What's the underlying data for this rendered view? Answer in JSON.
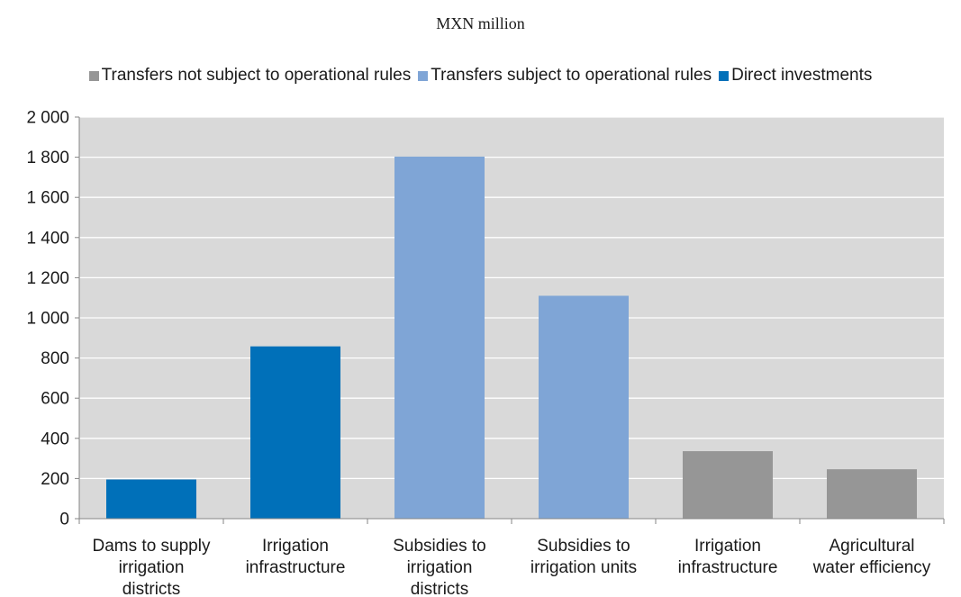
{
  "chart_data": {
    "type": "bar",
    "title": "MXN million",
    "xlabel": "",
    "ylabel": "",
    "ylim": [
      0,
      2000
    ],
    "yticks": [
      0,
      200,
      400,
      600,
      800,
      1000,
      1200,
      1400,
      1600,
      1800,
      2000
    ],
    "ytick_labels": [
      "0",
      "200",
      "400",
      "600",
      "800",
      "1 000",
      "1 200",
      "1 400",
      "1 600",
      "1 800",
      "2 000"
    ],
    "grid": true,
    "legend_position": "top",
    "legend": [
      {
        "label": "Transfers not subject to operational rules",
        "color": "#969696"
      },
      {
        "label": "Transfers subject to operational rules",
        "color": "#7fa5d6"
      },
      {
        "label": "Direct investments",
        "color": "#0070b9"
      }
    ],
    "categories": [
      [
        "Dams to supply",
        "irrigation",
        "districts"
      ],
      [
        "Irrigation",
        "infrastructure"
      ],
      [
        "Subsidies to",
        "irrigation",
        "districts"
      ],
      [
        "Subsidies to",
        "irrigation units"
      ],
      [
        "Irrigation",
        "infrastructure"
      ],
      [
        "Agricultural",
        "water efficiency"
      ]
    ],
    "values": [
      195,
      858,
      1803,
      1110,
      336,
      246
    ],
    "bar_colors": [
      "#0070b9",
      "#0070b9",
      "#7fa5d6",
      "#7fa5d6",
      "#969696",
      "#969696"
    ],
    "plot_background": "#d9d9d9"
  }
}
